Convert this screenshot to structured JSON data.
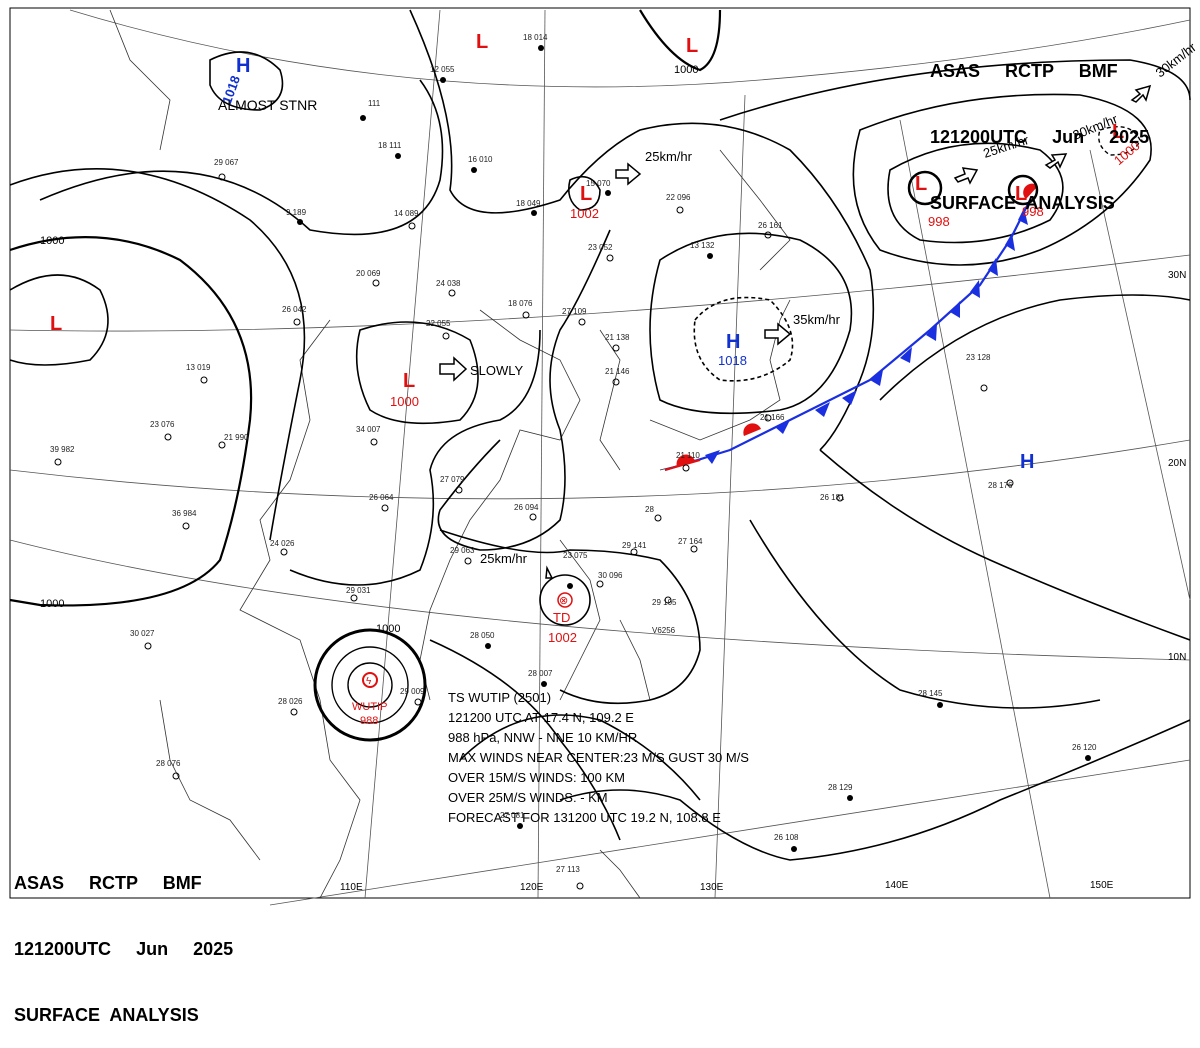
{
  "header": {
    "line1": "ASAS     RCTP     BMF",
    "line2": "121200UTC     Jun     2025",
    "line3": "SURFACE  ANALYSIS"
  },
  "footer": {
    "line1": "ASAS     RCTP     BMF",
    "line2": "121200UTC     Jun     2025",
    "line3": "SURFACE  ANALYSIS"
  },
  "colors": {
    "low_marker": "#e01010",
    "high_marker": "#1030d0",
    "isobar": "#000000",
    "cold_front": "#1a2fe0",
    "warm_front": "#e01010"
  },
  "longitude_labels": [
    "110E",
    "120E",
    "130E",
    "140E",
    "150E"
  ],
  "latitude_labels": [
    "30N",
    "20N",
    "10N"
  ],
  "isobar_labels": [
    "1000",
    "1000",
    "1000",
    "1000"
  ],
  "pressure_centers": [
    {
      "type": "H",
      "value": "1018",
      "note": "ALMOST STNR"
    },
    {
      "type": "L",
      "value": ""
    },
    {
      "type": "L",
      "value": ""
    },
    {
      "type": "L",
      "value": "1002"
    },
    {
      "type": "L",
      "value": "1000"
    },
    {
      "type": "H",
      "value": "1018"
    },
    {
      "type": "L",
      "value": "998"
    },
    {
      "type": "L",
      "value": "998"
    },
    {
      "type": "L",
      "value": "1000"
    },
    {
      "type": "L",
      "value": ""
    },
    {
      "type": "H",
      "value": ""
    },
    {
      "type": "TD",
      "value": "1002"
    }
  ],
  "motions": [
    {
      "text": "25km/hr"
    },
    {
      "text": "SLOWLY"
    },
    {
      "text": "25km/hr"
    },
    {
      "text": "30km/hr"
    },
    {
      "text": "30km/hr"
    },
    {
      "text": "35km/hr"
    },
    {
      "text": "25km/hr"
    }
  ],
  "typhoon": {
    "name": "WUTIP",
    "pressure": "988",
    "bulletin": [
      "TS  WUTIP  (2501)",
      "121200 UTC  AT 17.4 N,  109.2 E",
      "988 hPa, NNW - NNE  10 KM/HR",
      "MAX WINDS NEAR CENTER:23 M/S GUST 30 M/S",
      "OVER 15M/S WINDS: 100 KM",
      "OVER 25M/S WINDS:  - KM",
      "FORECAST FOR 131200 UTC  19.2 N, 108.8 E"
    ]
  },
  "stations": [
    "29 067",
    "111",
    "18 111",
    "9 189",
    "14 089",
    "20 069",
    "24 038",
    "22 055",
    "26 042",
    "18 014",
    "12 055",
    "16 010",
    "18 049",
    "15 070",
    "22 096",
    "23 052",
    "13 132",
    "18 076",
    "27 109",
    "21 138",
    "21 146",
    "34 007",
    "13 019",
    "23 076",
    "21 990",
    "39 982",
    "36 984",
    "26 064",
    "27 079",
    "26 094",
    "28",
    "29 141",
    "27 164",
    "29 063",
    "23 075",
    "30 096",
    "29 105",
    "28 050",
    "30 027",
    "24 026",
    "29 031",
    "28 026",
    "29 009",
    "28 076",
    "28 007",
    "27 081",
    "28 129",
    "26 108",
    "27 113",
    "28 145",
    "26 120",
    "23 128",
    "28 176",
    "26 181",
    "21 166",
    "21 110",
    "26 161",
    "V6256"
  ]
}
